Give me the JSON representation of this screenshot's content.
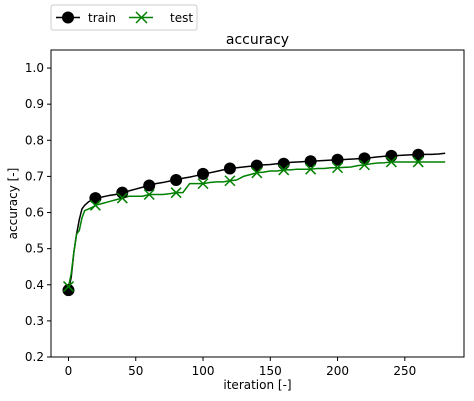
{
  "chart_data": {
    "type": "line",
    "title": "accuracy",
    "xlabel": "iteration [-]",
    "ylabel": "accuracy [-]",
    "xlim": [
      -13,
      294
    ],
    "ylim": [
      0.2,
      1.05
    ],
    "xticks": [
      0,
      50,
      100,
      150,
      200,
      250
    ],
    "yticks": [
      0.2,
      0.3,
      0.4,
      0.5,
      0.6,
      0.7,
      0.8,
      0.9,
      1.0
    ],
    "xtick_labels": [
      "0",
      "50",
      "100",
      "150",
      "200",
      "250"
    ],
    "ytick_labels": [
      "0.2",
      "0.3",
      "0.4",
      "0.5",
      "0.6",
      "0.7",
      "0.8",
      "0.9",
      "1.0"
    ],
    "grid": false,
    "legend": {
      "placement": "top-left-outside",
      "entries": [
        "train",
        "test"
      ]
    },
    "series": [
      {
        "name": "train",
        "color": "#000000",
        "marker": "circle",
        "x": [
          0,
          2,
          4,
          6,
          8,
          10,
          12,
          15,
          18,
          20,
          25,
          30,
          35,
          40,
          45,
          50,
          55,
          60,
          65,
          70,
          75,
          80,
          85,
          90,
          95,
          100,
          105,
          110,
          115,
          120,
          125,
          130,
          135,
          140,
          145,
          150,
          155,
          160,
          165,
          170,
          175,
          180,
          185,
          190,
          195,
          200,
          205,
          210,
          215,
          220,
          225,
          230,
          235,
          240,
          245,
          250,
          255,
          260,
          265,
          270,
          275,
          280
        ],
        "y": [
          0.385,
          0.42,
          0.49,
          0.54,
          0.58,
          0.61,
          0.62,
          0.63,
          0.635,
          0.64,
          0.643,
          0.647,
          0.65,
          0.655,
          0.66,
          0.665,
          0.67,
          0.675,
          0.68,
          0.683,
          0.687,
          0.69,
          0.695,
          0.698,
          0.702,
          0.707,
          0.71,
          0.714,
          0.718,
          0.722,
          0.724,
          0.726,
          0.728,
          0.73,
          0.732,
          0.733,
          0.735,
          0.737,
          0.739,
          0.74,
          0.741,
          0.742,
          0.743,
          0.744,
          0.745,
          0.746,
          0.747,
          0.748,
          0.749,
          0.75,
          0.752,
          0.754,
          0.756,
          0.757,
          0.758,
          0.759,
          0.76,
          0.76,
          0.761,
          0.761,
          0.762,
          0.764
        ],
        "markers_x": [
          0,
          20,
          40,
          60,
          80,
          100,
          120,
          140,
          160,
          180,
          200,
          220,
          240,
          260
        ],
        "markers_y": [
          0.385,
          0.64,
          0.655,
          0.675,
          0.69,
          0.707,
          0.722,
          0.73,
          0.735,
          0.742,
          0.746,
          0.75,
          0.757,
          0.76
        ]
      },
      {
        "name": "test",
        "color": "#008000",
        "marker": "x",
        "x": [
          0,
          2,
          4,
          6,
          8,
          10,
          12,
          15,
          18,
          20,
          25,
          30,
          35,
          40,
          45,
          50,
          55,
          60,
          65,
          70,
          75,
          80,
          85,
          90,
          95,
          100,
          105,
          110,
          115,
          120,
          125,
          130,
          135,
          140,
          145,
          150,
          155,
          160,
          165,
          170,
          175,
          180,
          185,
          190,
          195,
          200,
          205,
          210,
          215,
          220,
          225,
          230,
          235,
          240,
          245,
          250,
          255,
          260,
          265,
          270,
          275,
          280
        ],
        "y": [
          0.395,
          0.43,
          0.49,
          0.54,
          0.55,
          0.585,
          0.605,
          0.61,
          0.615,
          0.62,
          0.625,
          0.63,
          0.635,
          0.64,
          0.645,
          0.645,
          0.645,
          0.65,
          0.65,
          0.65,
          0.652,
          0.655,
          0.655,
          0.68,
          0.68,
          0.68,
          0.683,
          0.685,
          0.685,
          0.688,
          0.69,
          0.7,
          0.705,
          0.71,
          0.712,
          0.715,
          0.715,
          0.718,
          0.718,
          0.72,
          0.72,
          0.72,
          0.722,
          0.722,
          0.724,
          0.724,
          0.725,
          0.726,
          0.73,
          0.732,
          0.735,
          0.737,
          0.738,
          0.74,
          0.74,
          0.74,
          0.74,
          0.74,
          0.74,
          0.74,
          0.74,
          0.74
        ],
        "markers_x": [
          0,
          20,
          40,
          60,
          80,
          100,
          120,
          140,
          160,
          180,
          200,
          220,
          240,
          260
        ],
        "markers_y": [
          0.395,
          0.62,
          0.64,
          0.65,
          0.655,
          0.68,
          0.688,
          0.71,
          0.718,
          0.72,
          0.724,
          0.732,
          0.74,
          0.74
        ]
      }
    ]
  }
}
